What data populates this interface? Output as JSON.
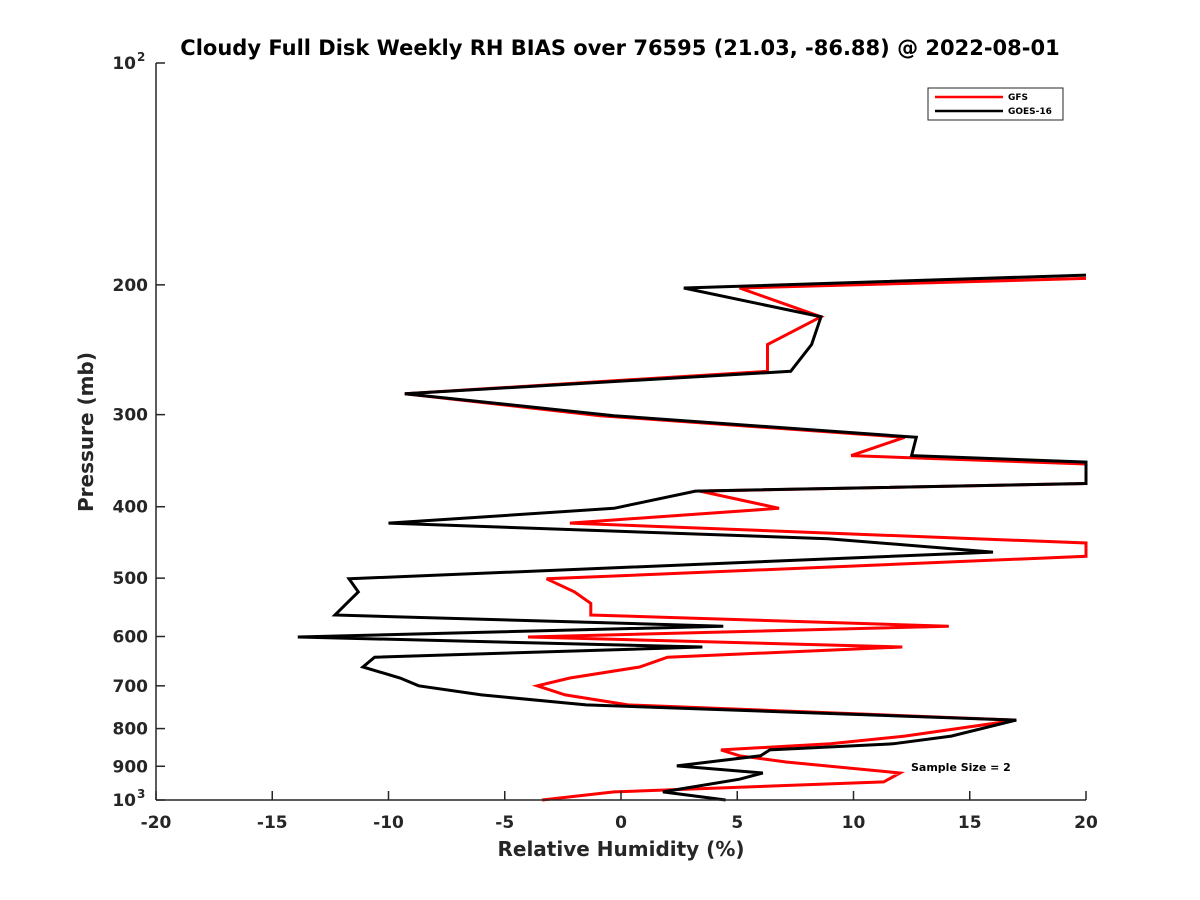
{
  "chart_data": {
    "type": "line",
    "title": "Cloudy Full Disk Weekly RH BIAS over 76595 (21.03, -86.88) @ 2022-08-01",
    "xlabel": "Relative Humidity (%)",
    "ylabel": "Pressure (mb)",
    "xlim": [
      -20,
      20
    ],
    "ylim": [
      100,
      1000
    ],
    "yscale": "log",
    "y_reversed": true,
    "xticks": [
      "-20",
      "-15",
      "-10",
      "-5",
      "0",
      "5",
      "10",
      "15",
      "20"
    ],
    "xtick_values": [
      -20,
      -15,
      -10,
      -5,
      0,
      5,
      10,
      15,
      20
    ],
    "yticks": [
      {
        "value": 100,
        "label": "10",
        "sup": "2"
      },
      {
        "value": 200,
        "label": "200"
      },
      {
        "value": 300,
        "label": "300"
      },
      {
        "value": 400,
        "label": "400"
      },
      {
        "value": 500,
        "label": "500"
      },
      {
        "value": 600,
        "label": "600"
      },
      {
        "value": 700,
        "label": "700"
      },
      {
        "value": 800,
        "label": "800"
      },
      {
        "value": 900,
        "label": "900"
      },
      {
        "value": 1000,
        "label": "10",
        "sup": "3"
      }
    ],
    "legend_position": "top-right",
    "annotation": "Sample Size = 2",
    "series": [
      {
        "name": "GFS",
        "color": "#ff0000",
        "points": [
          [
            20,
            196
          ],
          [
            5.1,
            202
          ],
          [
            8.6,
            221
          ],
          [
            6.3,
            241
          ],
          [
            6.3,
            262
          ],
          [
            -9.3,
            281
          ],
          [
            -0.9,
            301
          ],
          [
            12.2,
            322
          ],
          [
            9.9,
            341
          ],
          [
            20,
            350
          ],
          [
            20,
            372
          ],
          [
            3.4,
            381
          ],
          [
            6.8,
            402
          ],
          [
            -2.2,
            421
          ],
          [
            20,
            448
          ],
          [
            20,
            467
          ],
          [
            -3.2,
            501
          ],
          [
            -2.0,
            522
          ],
          [
            -1.3,
            541
          ],
          [
            -1.3,
            561
          ],
          [
            14.1,
            581
          ],
          [
            -4.0,
            601
          ],
          [
            12.1,
            620
          ],
          [
            2.0,
            640
          ],
          [
            0.8,
            660
          ],
          [
            -2.2,
            683
          ],
          [
            -3.6,
            700
          ],
          [
            -2.4,
            720
          ],
          [
            0.3,
            743
          ],
          [
            17.0,
            779
          ],
          [
            12.2,
            819
          ],
          [
            9.0,
            839
          ],
          [
            4.3,
            855
          ],
          [
            5.1,
            871
          ],
          [
            7.1,
            888
          ],
          [
            12.0,
            919
          ],
          [
            11.3,
            945
          ],
          [
            -0.3,
            975
          ],
          [
            -3.4,
            1000
          ]
        ]
      },
      {
        "name": "GOES-16",
        "color": "#000000",
        "points": [
          [
            20,
            194
          ],
          [
            2.7,
            202
          ],
          [
            8.6,
            221
          ],
          [
            8.2,
            241
          ],
          [
            7.3,
            262
          ],
          [
            -9.3,
            281
          ],
          [
            -0.3,
            301
          ],
          [
            12.7,
            322
          ],
          [
            12.5,
            341
          ],
          [
            20,
            348
          ],
          [
            20,
            372
          ],
          [
            3.2,
            381
          ],
          [
            -0.3,
            402
          ],
          [
            -10.0,
            421
          ],
          [
            8.9,
            442
          ],
          [
            16.0,
            461
          ],
          [
            -11.7,
            501
          ],
          [
            -11.3,
            522
          ],
          [
            -11.8,
            541
          ],
          [
            -12.3,
            561
          ],
          [
            4.4,
            581
          ],
          [
            -13.9,
            601
          ],
          [
            3.5,
            620
          ],
          [
            -10.6,
            640
          ],
          [
            -11.1,
            660
          ],
          [
            -9.5,
            683
          ],
          [
            -8.7,
            700
          ],
          [
            -6.0,
            720
          ],
          [
            -1.5,
            743
          ],
          [
            17.0,
            779
          ],
          [
            14.2,
            819
          ],
          [
            11.7,
            839
          ],
          [
            6.4,
            855
          ],
          [
            6.0,
            871
          ],
          [
            2.4,
            899
          ],
          [
            6.1,
            919
          ],
          [
            5.1,
            937
          ],
          [
            1.8,
            975
          ],
          [
            4.5,
            1000
          ]
        ]
      }
    ]
  }
}
